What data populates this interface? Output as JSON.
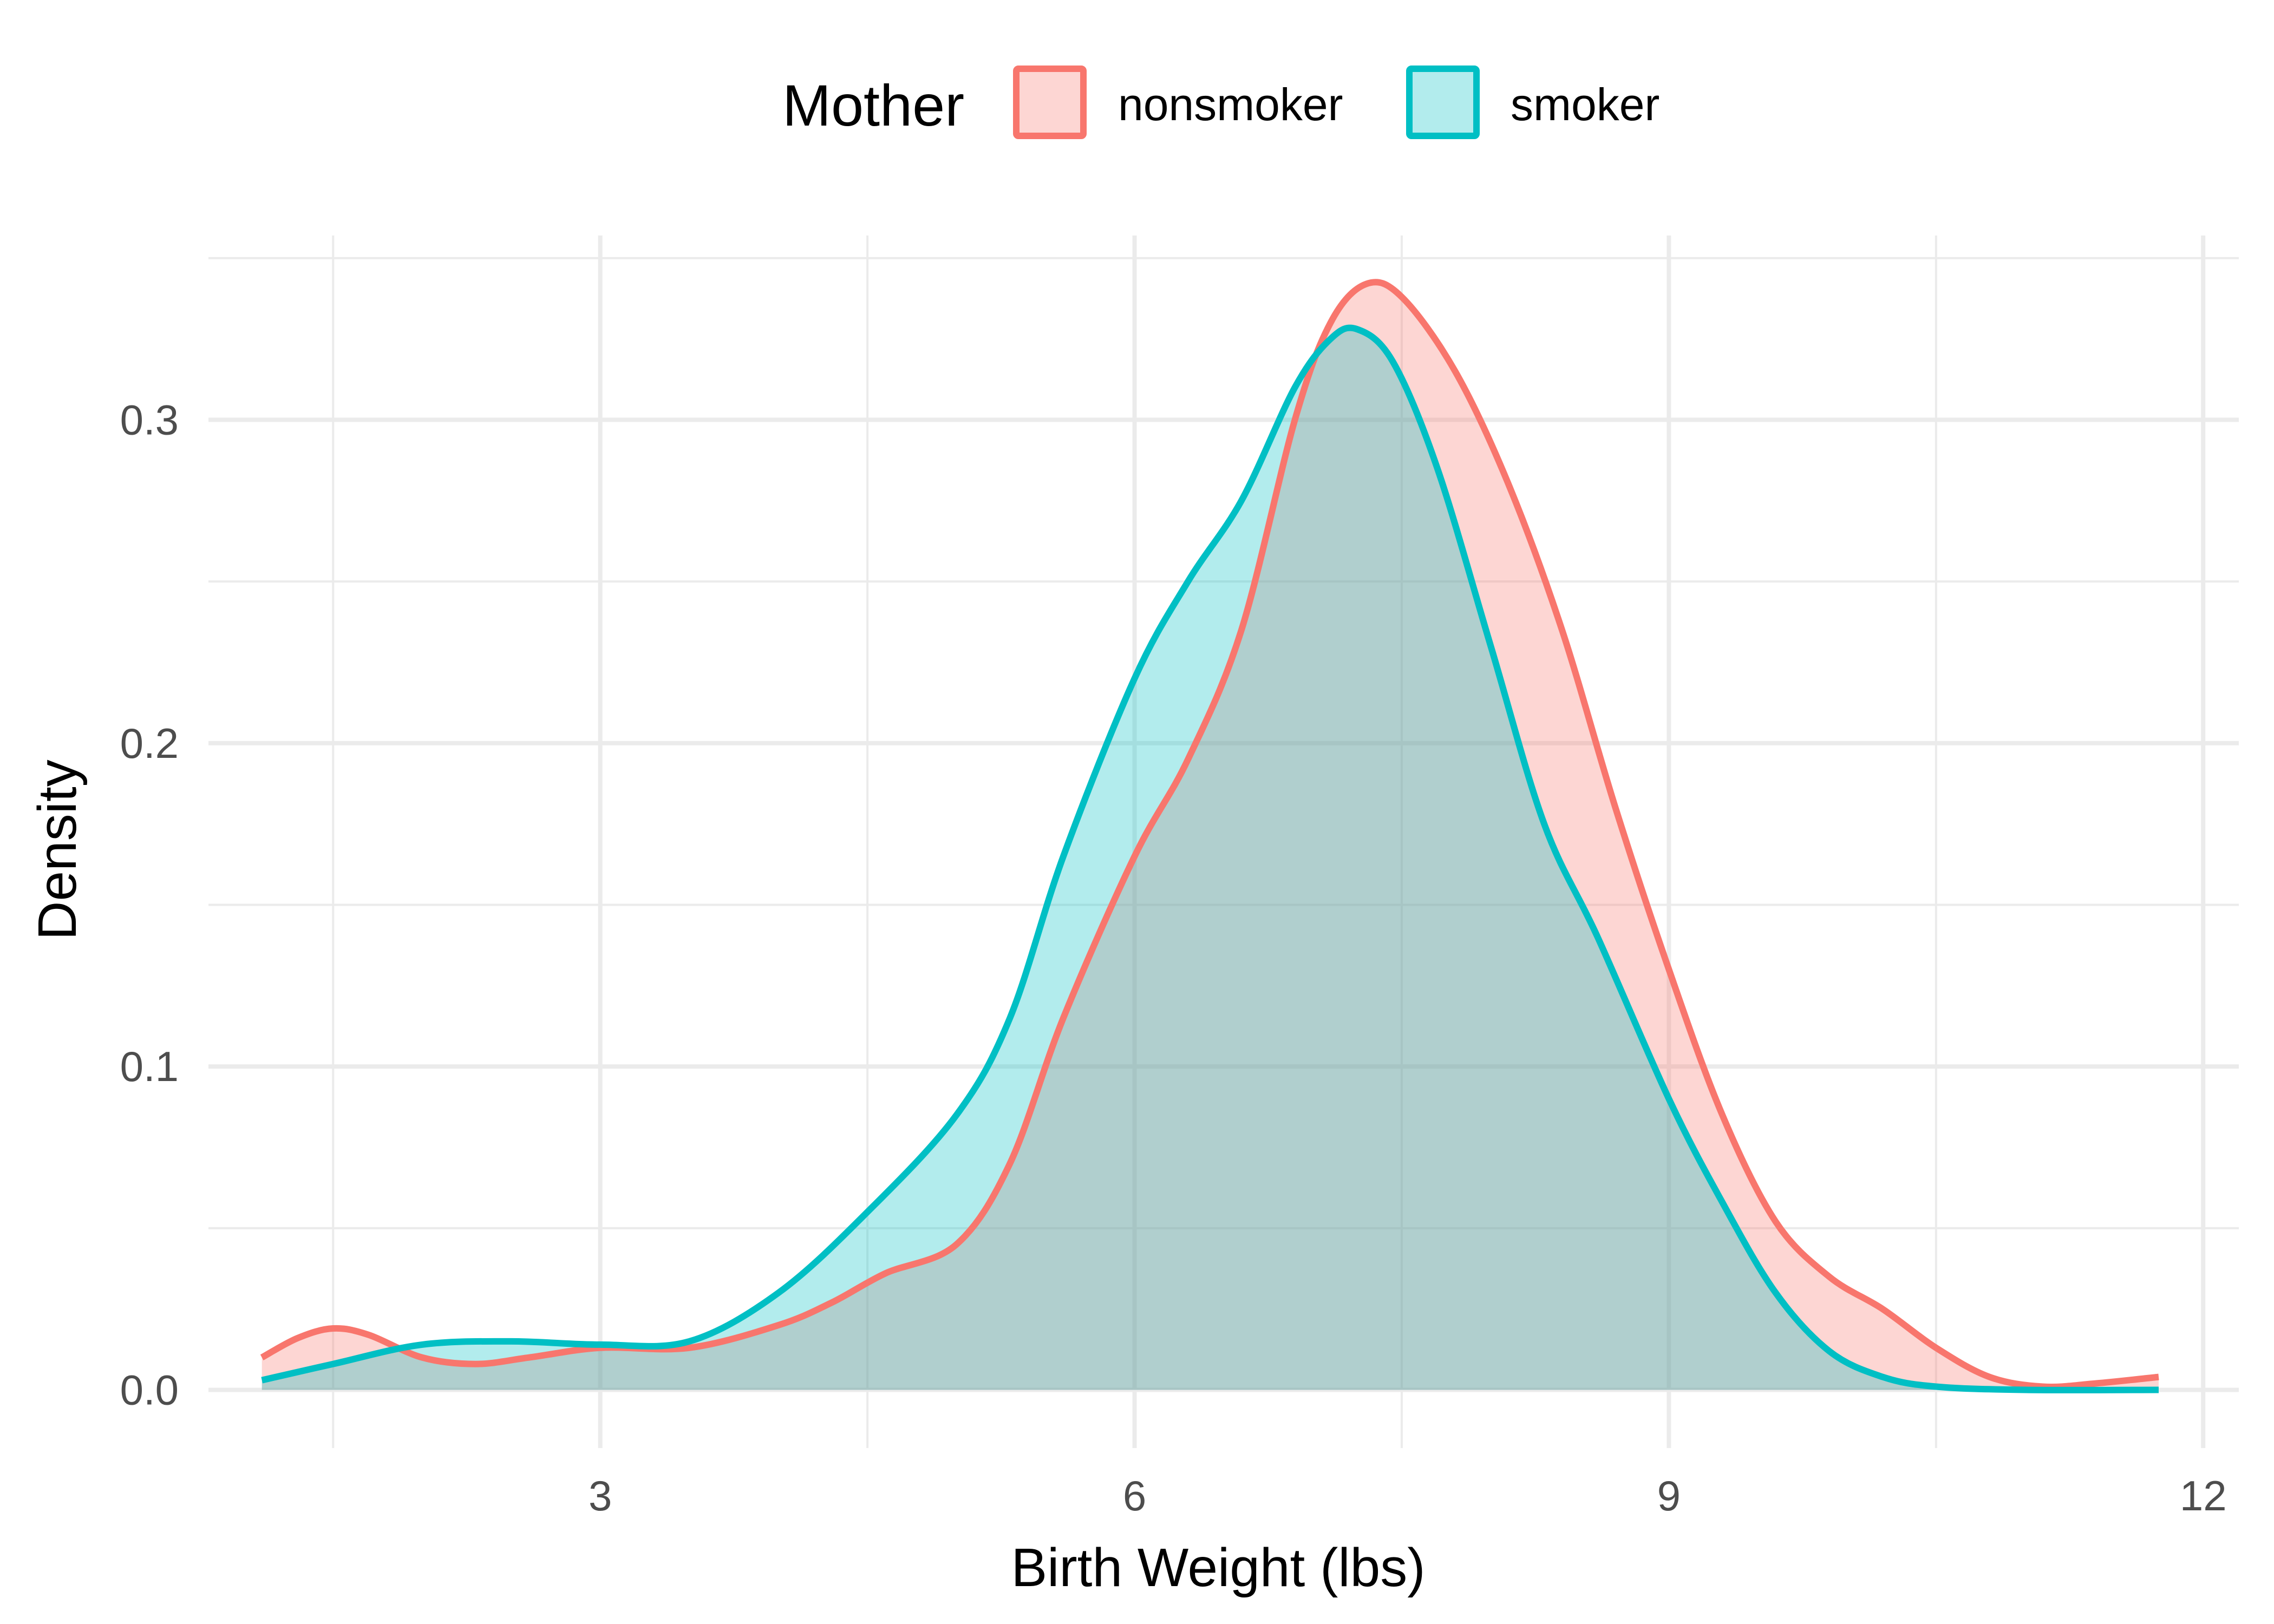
{
  "chart_data": {
    "type": "area",
    "xlabel": "Birth Weight (lbs)",
    "ylabel": "Density",
    "xlim": [
      0.8,
      12.2
    ],
    "ylim": [
      -0.018,
      0.357
    ],
    "x_ticks": [
      3,
      6,
      9,
      12
    ],
    "x_tick_labels": [
      "3",
      "6",
      "9",
      "12"
    ],
    "x_minor_ticks": [
      1.5,
      4.5,
      7.5,
      10.5
    ],
    "y_ticks": [
      0.0,
      0.1,
      0.2,
      0.3
    ],
    "y_tick_labels": [
      "0.0",
      "0.1",
      "0.2",
      "0.3"
    ],
    "y_minor_ticks": [
      0.05,
      0.15,
      0.25,
      0.35
    ],
    "grid": true,
    "legend": {
      "title": "Mother",
      "position": "top",
      "entries": [
        "nonsmoker",
        "smoker"
      ]
    },
    "series": [
      {
        "name": "nonsmoker",
        "color": "#F8766D",
        "fill": "#F8766D",
        "fill_opacity": 0.3,
        "points": [
          [
            1.1,
            0.01
          ],
          [
            1.3,
            0.016
          ],
          [
            1.5,
            0.019
          ],
          [
            1.7,
            0.017
          ],
          [
            2.0,
            0.01
          ],
          [
            2.3,
            0.008
          ],
          [
            2.6,
            0.01
          ],
          [
            3.0,
            0.013
          ],
          [
            3.5,
            0.013
          ],
          [
            4.0,
            0.02
          ],
          [
            4.3,
            0.027
          ],
          [
            4.6,
            0.036
          ],
          [
            5.0,
            0.045
          ],
          [
            5.3,
            0.07
          ],
          [
            5.6,
            0.115
          ],
          [
            6.0,
            0.165
          ],
          [
            6.3,
            0.195
          ],
          [
            6.6,
            0.235
          ],
          [
            6.9,
            0.3
          ],
          [
            7.1,
            0.33
          ],
          [
            7.3,
            0.342
          ],
          [
            7.5,
            0.338
          ],
          [
            7.8,
            0.315
          ],
          [
            8.1,
            0.28
          ],
          [
            8.4,
            0.235
          ],
          [
            8.7,
            0.18
          ],
          [
            9.0,
            0.13
          ],
          [
            9.3,
            0.085
          ],
          [
            9.6,
            0.052
          ],
          [
            9.9,
            0.035
          ],
          [
            10.2,
            0.025
          ],
          [
            10.5,
            0.013
          ],
          [
            10.8,
            0.004
          ],
          [
            11.1,
            0.001
          ],
          [
            11.4,
            0.002
          ],
          [
            11.75,
            0.004
          ]
        ]
      },
      {
        "name": "smoker",
        "color": "#00BFC4",
        "fill": "#00BFC4",
        "fill_opacity": 0.3,
        "points": [
          [
            1.1,
            0.003
          ],
          [
            1.5,
            0.008
          ],
          [
            2.0,
            0.014
          ],
          [
            2.5,
            0.015
          ],
          [
            3.0,
            0.014
          ],
          [
            3.5,
            0.015
          ],
          [
            4.0,
            0.03
          ],
          [
            4.5,
            0.055
          ],
          [
            5.0,
            0.085
          ],
          [
            5.3,
            0.115
          ],
          [
            5.6,
            0.165
          ],
          [
            6.0,
            0.22
          ],
          [
            6.3,
            0.25
          ],
          [
            6.6,
            0.275
          ],
          [
            6.9,
            0.31
          ],
          [
            7.1,
            0.325
          ],
          [
            7.25,
            0.328
          ],
          [
            7.45,
            0.318
          ],
          [
            7.7,
            0.285
          ],
          [
            8.0,
            0.23
          ],
          [
            8.3,
            0.175
          ],
          [
            8.6,
            0.14
          ],
          [
            9.0,
            0.09
          ],
          [
            9.3,
            0.058
          ],
          [
            9.6,
            0.03
          ],
          [
            9.9,
            0.012
          ],
          [
            10.2,
            0.004
          ],
          [
            10.5,
            0.001
          ],
          [
            11.0,
            0.0
          ],
          [
            11.75,
            0.0
          ]
        ]
      }
    ]
  }
}
